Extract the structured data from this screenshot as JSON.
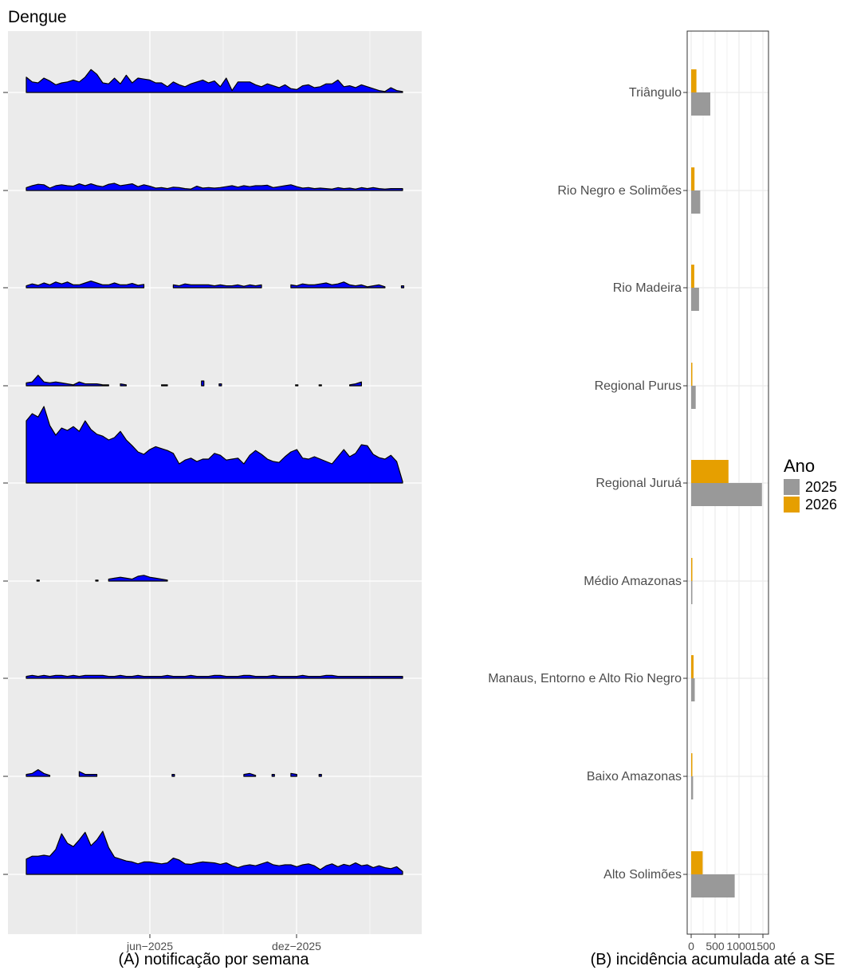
{
  "title": "Dengue",
  "panels": [
    {
      "id": "A",
      "caption": "(A) notificação por semana",
      "x_ticks": [
        "jun−2025",
        "dez−2025"
      ]
    },
    {
      "id": "B",
      "caption": "(B) incidência acumulada até a SE",
      "x_ticks": [
        "0",
        "500",
        "1000",
        "1500"
      ]
    }
  ],
  "legend": {
    "title": "Ano",
    "items": [
      {
        "label": "2025",
        "color": "#999999"
      },
      {
        "label": "2026",
        "color": "#E69F00"
      }
    ]
  },
  "colors": {
    "area_fill": "#0000FF",
    "area_stroke": "#000000",
    "panel_bg": "#EBEBEB"
  },
  "chart_data": [
    {
      "type": "area",
      "title": "(A) notificação por semana",
      "x_ticks": [
        "jun−2025",
        "dez−2025"
      ],
      "weeks": 65,
      "rows_top_to_bottom": [
        {
          "values": [
            32,
            22,
            20,
            30,
            24,
            16,
            20,
            22,
            26,
            22,
            32,
            48,
            38,
            20,
            18,
            30,
            18,
            36,
            20,
            30,
            28,
            26,
            20,
            20,
            12,
            22,
            16,
            12,
            18,
            22,
            26,
            20,
            24,
            12,
            30,
            4,
            22,
            22,
            22,
            16,
            12,
            18,
            14,
            10,
            16,
            8,
            6,
            14,
            16,
            10,
            12,
            18,
            18,
            26,
            12,
            14,
            10,
            16,
            12,
            8,
            4,
            2,
            10,
            4,
            2
          ]
        },
        {
          "values": [
            6,
            10,
            13,
            12,
            5,
            10,
            12,
            10,
            9,
            14,
            10,
            14,
            10,
            8,
            13,
            15,
            10,
            12,
            14,
            8,
            12,
            9,
            5,
            6,
            4,
            7,
            6,
            4,
            3,
            9,
            5,
            6,
            5,
            6,
            8,
            10,
            7,
            10,
            8,
            10,
            10,
            11,
            6,
            8,
            10,
            12,
            8,
            5,
            6,
            4,
            5,
            4,
            3,
            6,
            4,
            5,
            3,
            6,
            4,
            6,
            4,
            3,
            4,
            4,
            4
          ]
        },
        {
          "values": [
            4,
            8,
            5,
            10,
            6,
            12,
            8,
            12,
            6,
            6,
            10,
            14,
            10,
            6,
            6,
            10,
            6,
            6,
            9,
            5,
            7,
            null,
            null,
            null,
            null,
            6,
            4,
            8,
            6,
            6,
            6,
            6,
            4,
            6,
            4,
            4,
            6,
            3,
            6,
            4,
            6,
            null,
            null,
            null,
            null,
            6,
            4,
            8,
            6,
            6,
            8,
            10,
            6,
            8,
            12,
            6,
            4,
            6,
            2,
            4,
            6,
            2,
            null,
            null,
            4
          ]
        },
        {
          "values": [
            6,
            8,
            22,
            8,
            6,
            8,
            6,
            4,
            2,
            8,
            4,
            4,
            4,
            2,
            2,
            null,
            4,
            2,
            null,
            null,
            null,
            null,
            null,
            2,
            2,
            null,
            null,
            null,
            null,
            null,
            10,
            null,
            null,
            4,
            null,
            null,
            null,
            null,
            null,
            null,
            null,
            null,
            null,
            null,
            null,
            null,
            2,
            null,
            null,
            null,
            2,
            null,
            null,
            null,
            null,
            2,
            4,
            8,
            null,
            null,
            null,
            null,
            null,
            null,
            null
          ]
        },
        {
          "values": [
            130,
            145,
            138,
            160,
            120,
            100,
            115,
            110,
            118,
            108,
            130,
            112,
            102,
            98,
            90,
            95,
            108,
            90,
            78,
            65,
            60,
            70,
            76,
            72,
            68,
            62,
            40,
            48,
            52,
            45,
            50,
            50,
            62,
            58,
            48,
            50,
            52,
            40,
            58,
            68,
            60,
            50,
            45,
            43,
            55,
            65,
            70,
            52,
            50,
            55,
            50,
            45,
            40,
            55,
            70,
            55,
            62,
            80,
            78,
            60,
            53,
            50,
            58,
            45,
            3
          ]
        },
        {
          "values": [
            null,
            null,
            2,
            null,
            null,
            null,
            null,
            null,
            null,
            null,
            null,
            null,
            2,
            null,
            4,
            6,
            8,
            6,
            4,
            10,
            12,
            8,
            6,
            4,
            2,
            null,
            null,
            null,
            null,
            null,
            null,
            null,
            null,
            null,
            null,
            null,
            null,
            null,
            null,
            null,
            null,
            null,
            null,
            null,
            null,
            null,
            null,
            null,
            null,
            null,
            null,
            null,
            null,
            null,
            null,
            null,
            null,
            null,
            null,
            null,
            null,
            null,
            null,
            null,
            null
          ]
        },
        {
          "values": [
            4,
            6,
            4,
            6,
            4,
            6,
            6,
            4,
            6,
            4,
            6,
            6,
            6,
            6,
            4,
            4,
            6,
            4,
            4,
            6,
            4,
            4,
            4,
            4,
            6,
            4,
            4,
            4,
            6,
            4,
            4,
            4,
            6,
            6,
            4,
            4,
            4,
            6,
            6,
            4,
            4,
            4,
            6,
            4,
            4,
            4,
            4,
            6,
            4,
            4,
            4,
            6,
            6,
            4,
            4,
            4,
            4,
            4,
            4,
            4,
            4,
            4,
            4,
            4,
            4
          ]
        },
        {
          "values": [
            4,
            6,
            14,
            6,
            2,
            null,
            null,
            null,
            null,
            10,
            4,
            4,
            4,
            null,
            null,
            null,
            null,
            null,
            null,
            null,
            null,
            null,
            null,
            null,
            null,
            4,
            null,
            null,
            null,
            null,
            null,
            null,
            null,
            null,
            null,
            null,
            null,
            4,
            6,
            2,
            null,
            null,
            4,
            null,
            null,
            6,
            4,
            null,
            null,
            null,
            4,
            null,
            null,
            null,
            null,
            null,
            null,
            null,
            null,
            null,
            null,
            null,
            null,
            null,
            null
          ]
        },
        {
          "values": [
            32,
            38,
            38,
            40,
            38,
            52,
            85,
            65,
            58,
            72,
            88,
            60,
            72,
            90,
            56,
            36,
            32,
            28,
            26,
            22,
            26,
            26,
            24,
            22,
            24,
            34,
            30,
            22,
            21,
            24,
            26,
            25,
            24,
            21,
            24,
            18,
            14,
            18,
            20,
            18,
            22,
            26,
            20,
            18,
            20,
            20,
            16,
            20,
            22,
            18,
            10,
            18,
            22,
            16,
            21,
            18,
            24,
            18,
            20,
            14,
            18,
            14,
            12,
            16,
            6
          ]
        }
      ]
    },
    {
      "type": "bar",
      "title": "(B) incidência acumulada até a SE",
      "orientation": "horizontal",
      "categories": [
        "Triângulo",
        "Rio Negro e Solimões",
        "Rio Madeira",
        "Regional Purus",
        "Regional Juruá",
        "Médio Amazonas",
        "Manaus, Entorno e Alto Rio Negro",
        "Baixo Amazonas",
        "Alto Solimões"
      ],
      "xlim": [
        0,
        1500
      ],
      "x_ticks": [
        0,
        500,
        1000,
        1500
      ],
      "series": [
        {
          "name": "2025",
          "color": "#999999",
          "values": [
            400,
            190,
            165,
            95,
            1480,
            18,
            75,
            40,
            910
          ]
        },
        {
          "name": "2026",
          "color": "#E69F00",
          "values": [
            110,
            70,
            65,
            20,
            780,
            10,
            50,
            8,
            240
          ]
        }
      ]
    }
  ]
}
